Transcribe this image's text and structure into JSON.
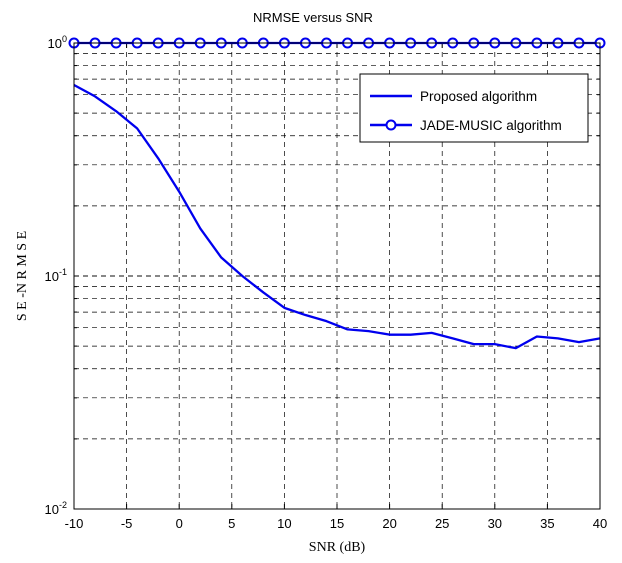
{
  "chart_data": {
    "type": "line",
    "title": "NRMSE versus SNR",
    "xlabel": "SNR (dB)",
    "ylabel": "S E -N R M S E",
    "xlim": [
      -10,
      40
    ],
    "ylim": [
      0.01,
      1
    ],
    "yscale": "log",
    "grid": true,
    "legend_position": "top-right",
    "x_ticks": [
      "-10",
      "-5",
      "0",
      "5",
      "10",
      "15",
      "20",
      "25",
      "30",
      "35",
      "40"
    ],
    "y_ticks": [
      {
        "base": "10",
        "exp": "-2"
      },
      {
        "base": "10",
        "exp": "-1"
      },
      {
        "base": "10",
        "exp": "0"
      }
    ],
    "x": [
      -10,
      -8,
      -6,
      -4,
      -2,
      0,
      2,
      4,
      6,
      8,
      10,
      12,
      14,
      16,
      18,
      20,
      22,
      24,
      26,
      28,
      30,
      32,
      34,
      36,
      38,
      40
    ],
    "series": [
      {
        "name": "Proposed algorithm",
        "color": "#0000ee",
        "marker": "none",
        "values": [
          0.66,
          0.59,
          0.51,
          0.43,
          0.32,
          0.23,
          0.16,
          0.12,
          0.1,
          0.085,
          0.073,
          0.068,
          0.064,
          0.059,
          0.058,
          0.056,
          0.056,
          0.057,
          0.054,
          0.051,
          0.051,
          0.049,
          0.055,
          0.054,
          0.052,
          0.054
        ]
      },
      {
        "name": "JADE-MUSIC algorithm",
        "color": "#0000ee",
        "marker": "circle",
        "values": [
          1,
          1,
          1,
          1,
          1,
          1,
          1,
          1,
          1,
          1,
          1,
          1,
          1,
          1,
          1,
          1,
          1,
          1,
          1,
          1,
          1,
          1,
          1,
          1,
          1,
          1
        ]
      }
    ]
  }
}
